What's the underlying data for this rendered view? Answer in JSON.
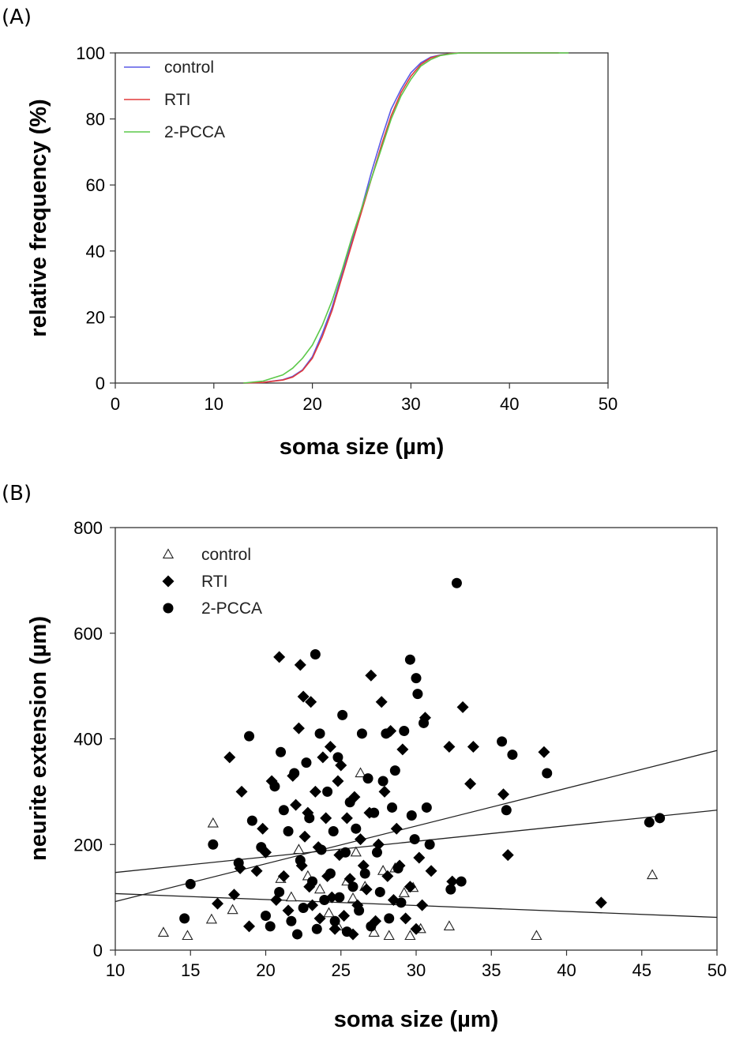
{
  "chart_data": [
    {
      "panel_label": "(A)",
      "type": "line",
      "xlabel": "soma size (µm)",
      "ylabel": "relative frequency (%)",
      "xlim": [
        0,
        50
      ],
      "ylim": [
        0,
        100
      ],
      "x_ticks": [
        "0",
        "10",
        "20",
        "30",
        "40",
        "50"
      ],
      "y_ticks": [
        "0",
        "20",
        "40",
        "60",
        "80",
        "100"
      ],
      "grid": false,
      "legend_position": "top-left",
      "series": [
        {
          "name": "control",
          "color": "#5a5ae6",
          "x": [
            13,
            15,
            17,
            18,
            19,
            20,
            21,
            22,
            23,
            24,
            25,
            26,
            27,
            28,
            29,
            30,
            31,
            32,
            33,
            34,
            35,
            37,
            40,
            45
          ],
          "y": [
            0,
            0.2,
            1,
            2,
            4,
            8,
            15,
            23,
            33,
            43,
            53,
            64,
            74,
            83,
            89,
            94,
            97,
            98.7,
            99.4,
            99.8,
            100,
            100,
            100,
            100
          ]
        },
        {
          "name": "RTI",
          "color": "#e23a3a",
          "x": [
            13,
            15,
            17,
            18,
            19,
            20,
            21,
            22,
            23,
            24,
            25,
            26,
            27,
            28,
            29,
            30,
            31,
            32,
            33,
            34,
            35,
            37,
            40,
            45
          ],
          "y": [
            0,
            0.2,
            0.9,
            1.8,
            3.8,
            7.5,
            14,
            22,
            32,
            42,
            52,
            62,
            72,
            81,
            88,
            93,
            96.5,
            98.5,
            99.3,
            99.8,
            100,
            100,
            100,
            100
          ]
        },
        {
          "name": "2-PCCA",
          "color": "#5cc84a",
          "x": [
            13,
            15,
            17,
            18,
            19,
            20,
            21,
            22,
            23,
            24,
            25,
            26,
            27,
            28,
            29,
            30,
            31,
            32,
            33,
            34,
            35,
            37,
            40,
            46
          ],
          "y": [
            0,
            0.6,
            2.5,
            4.5,
            7.5,
            11.5,
            17.5,
            25,
            34,
            44,
            53,
            62,
            71,
            80,
            87,
            92,
            96,
            98,
            99.2,
            99.7,
            100,
            100,
            100,
            100
          ]
        }
      ]
    },
    {
      "panel_label": "(B)",
      "type": "scatter",
      "xlabel": "soma size (µm)",
      "ylabel": "neurite extension (µm)",
      "xlim": [
        10,
        50
      ],
      "ylim": [
        0,
        800
      ],
      "x_ticks": [
        "10",
        "15",
        "20",
        "25",
        "30",
        "35",
        "40",
        "45",
        "50"
      ],
      "y_ticks": [
        "0",
        "200",
        "400",
        "600",
        "800"
      ],
      "grid": false,
      "legend_position": "top-left",
      "series": [
        {
          "name": "control",
          "marker": "triangle-open",
          "points": [
            [
              13.2,
              33
            ],
            [
              14.8,
              27
            ],
            [
              16.4,
              58
            ],
            [
              16.5,
              240
            ],
            [
              17.8,
              76
            ],
            [
              21.0,
              135
            ],
            [
              21.7,
              100
            ],
            [
              22.2,
              190
            ],
            [
              22.8,
              140
            ],
            [
              23.6,
              115
            ],
            [
              24.2,
              70
            ],
            [
              24.8,
              45
            ],
            [
              25.4,
              130
            ],
            [
              25.8,
              98
            ],
            [
              26.0,
              185
            ],
            [
              26.3,
              335
            ],
            [
              26.6,
              120
            ],
            [
              27.2,
              33
            ],
            [
              27.8,
              150
            ],
            [
              28.2,
              27
            ],
            [
              28.6,
              155
            ],
            [
              29.2,
              108
            ],
            [
              29.6,
              27
            ],
            [
              29.8,
              118
            ],
            [
              30.3,
              40
            ],
            [
              32.2,
              45
            ],
            [
              38.0,
              27
            ],
            [
              45.7,
              142
            ]
          ]
        },
        {
          "name": "RTI",
          "marker": "diamond-filled",
          "points": [
            [
              16.8,
              88
            ],
            [
              17.6,
              365
            ],
            [
              17.9,
              105
            ],
            [
              18.3,
              155
            ],
            [
              18.4,
              300
            ],
            [
              18.9,
              45
            ],
            [
              19.4,
              150
            ],
            [
              19.8,
              230
            ],
            [
              20.0,
              185
            ],
            [
              20.4,
              320
            ],
            [
              20.7,
              95
            ],
            [
              20.9,
              555
            ],
            [
              21.2,
              140
            ],
            [
              21.5,
              75
            ],
            [
              21.8,
              330
            ],
            [
              22.0,
              275
            ],
            [
              22.2,
              420
            ],
            [
              22.3,
              540
            ],
            [
              22.4,
              160
            ],
            [
              22.5,
              480
            ],
            [
              22.6,
              215
            ],
            [
              22.8,
              260
            ],
            [
              22.9,
              120
            ],
            [
              23.0,
              470
            ],
            [
              23.1,
              85
            ],
            [
              23.3,
              300
            ],
            [
              23.5,
              195
            ],
            [
              23.6,
              60
            ],
            [
              23.8,
              365
            ],
            [
              24.0,
              250
            ],
            [
              24.1,
              140
            ],
            [
              24.3,
              385
            ],
            [
              24.4,
              100
            ],
            [
              24.6,
              40
            ],
            [
              24.8,
              320
            ],
            [
              24.9,
              180
            ],
            [
              25.0,
              350
            ],
            [
              25.2,
              65
            ],
            [
              25.4,
              250
            ],
            [
              25.6,
              135
            ],
            [
              25.8,
              30
            ],
            [
              25.9,
              290
            ],
            [
              26.1,
              85
            ],
            [
              26.3,
              210
            ],
            [
              26.5,
              160
            ],
            [
              26.7,
              115
            ],
            [
              26.9,
              260
            ],
            [
              27.0,
              520
            ],
            [
              27.3,
              55
            ],
            [
              27.5,
              200
            ],
            [
              27.7,
              470
            ],
            [
              27.9,
              300
            ],
            [
              28.1,
              140
            ],
            [
              28.3,
              415
            ],
            [
              28.5,
              95
            ],
            [
              28.7,
              230
            ],
            [
              28.9,
              160
            ],
            [
              29.1,
              380
            ],
            [
              29.3,
              60
            ],
            [
              29.6,
              120
            ],
            [
              30.0,
              40
            ],
            [
              30.2,
              175
            ],
            [
              30.4,
              85
            ],
            [
              30.6,
              440
            ],
            [
              31.0,
              150
            ],
            [
              32.2,
              385
            ],
            [
              32.4,
              130
            ],
            [
              33.1,
              460
            ],
            [
              33.6,
              315
            ],
            [
              33.8,
              385
            ],
            [
              35.8,
              295
            ],
            [
              36.1,
              180
            ],
            [
              38.5,
              375
            ],
            [
              42.3,
              90
            ]
          ]
        },
        {
          "name": "2-PCCA",
          "marker": "circle-filled",
          "points": [
            [
              14.6,
              60
            ],
            [
              15.0,
              125
            ],
            [
              16.5,
              200
            ],
            [
              18.2,
              165
            ],
            [
              18.9,
              405
            ],
            [
              19.1,
              245
            ],
            [
              19.7,
              195
            ],
            [
              20.0,
              65
            ],
            [
              20.3,
              45
            ],
            [
              20.6,
              310
            ],
            [
              20.9,
              110
            ],
            [
              21.0,
              375
            ],
            [
              21.2,
              265
            ],
            [
              21.5,
              225
            ],
            [
              21.7,
              55
            ],
            [
              21.9,
              335
            ],
            [
              22.1,
              30
            ],
            [
              22.3,
              170
            ],
            [
              22.5,
              80
            ],
            [
              22.7,
              355
            ],
            [
              22.9,
              250
            ],
            [
              23.1,
              130
            ],
            [
              23.3,
              560
            ],
            [
              23.4,
              40
            ],
            [
              23.6,
              410
            ],
            [
              23.7,
              190
            ],
            [
              23.9,
              95
            ],
            [
              24.1,
              300
            ],
            [
              24.3,
              145
            ],
            [
              24.5,
              225
            ],
            [
              24.6,
              55
            ],
            [
              24.8,
              365
            ],
            [
              24.9,
              100
            ],
            [
              25.1,
              445
            ],
            [
              25.3,
              185
            ],
            [
              25.4,
              35
            ],
            [
              25.6,
              280
            ],
            [
              25.8,
              120
            ],
            [
              26.0,
              230
            ],
            [
              26.2,
              75
            ],
            [
              26.4,
              410
            ],
            [
              26.6,
              145
            ],
            [
              26.8,
              325
            ],
            [
              27.0,
              45
            ],
            [
              27.2,
              260
            ],
            [
              27.4,
              185
            ],
            [
              27.6,
              110
            ],
            [
              27.8,
              320
            ],
            [
              28.0,
              410
            ],
            [
              28.2,
              60
            ],
            [
              28.4,
              270
            ],
            [
              28.6,
              340
            ],
            [
              28.8,
              155
            ],
            [
              29.0,
              90
            ],
            [
              29.2,
              415
            ],
            [
              29.6,
              550
            ],
            [
              29.7,
              255
            ],
            [
              29.9,
              210
            ],
            [
              30.0,
              515
            ],
            [
              30.1,
              485
            ],
            [
              30.5,
              430
            ],
            [
              30.7,
              270
            ],
            [
              30.9,
              200
            ],
            [
              32.3,
              115
            ],
            [
              32.7,
              695
            ],
            [
              33.0,
              130
            ],
            [
              35.7,
              395
            ],
            [
              36.0,
              265
            ],
            [
              36.4,
              370
            ],
            [
              38.7,
              335
            ],
            [
              45.5,
              242
            ],
            [
              46.2,
              250
            ]
          ]
        }
      ],
      "regression_lines": [
        {
          "x": [
            10,
            50
          ],
          "y": [
            92,
            378
          ]
        },
        {
          "x": [
            10,
            50
          ],
          "y": [
            147,
            265
          ]
        },
        {
          "x": [
            10,
            50
          ],
          "y": [
            107,
            62
          ]
        }
      ]
    }
  ]
}
